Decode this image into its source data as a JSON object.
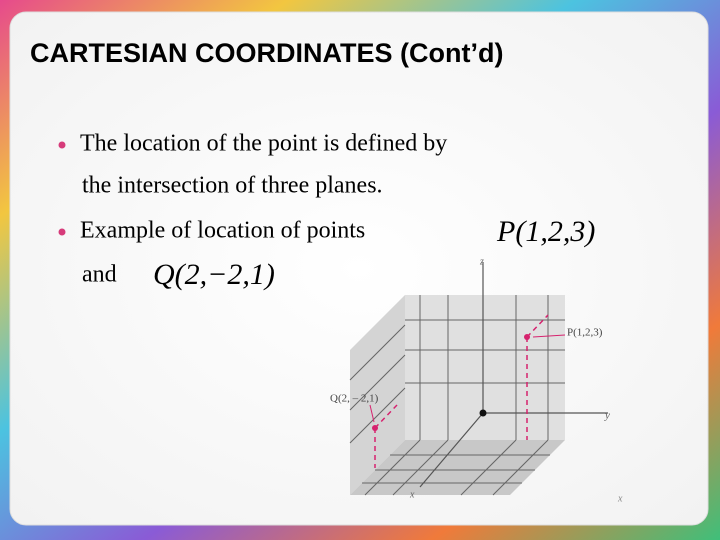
{
  "title": "CARTESIAN COORDINATES (Cont’d)",
  "bullets": [
    {
      "lines": [
        "The location of the point is defined by",
        "the intersection of three planes."
      ]
    },
    {
      "lines": [
        "Example of location of points",
        "and"
      ]
    }
  ],
  "math": {
    "p": "P(1,2,3)",
    "q": "Q(2,−2,1)"
  },
  "figure": {
    "z_label": "z",
    "y_label": "y",
    "x_label": "x",
    "p_label": "P(1,2,3)",
    "q_label": "Q(2, – 2,1)",
    "corner": "x"
  }
}
